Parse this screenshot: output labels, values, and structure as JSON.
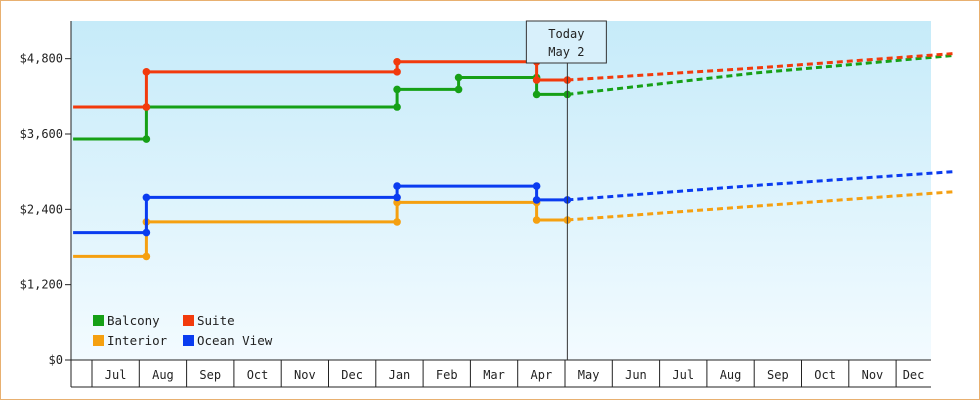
{
  "chart_data": {
    "type": "line",
    "title": "",
    "xlabel": "",
    "ylabel": "",
    "ylim": [
      0,
      5400
    ],
    "y_ticks": [
      0,
      1200,
      2400,
      3600,
      4800
    ],
    "y_tick_labels": [
      "$0",
      "$1,200",
      "$2,400",
      "$3,600",
      "$4,800"
    ],
    "x_months": [
      "Jul",
      "Aug",
      "Sep",
      "Oct",
      "Nov",
      "Dec",
      "Jan",
      "Feb",
      "Mar",
      "Apr",
      "May",
      "Jun",
      "Jul",
      "Aug",
      "Sep",
      "Oct",
      "Nov",
      "Dec"
    ],
    "x_range_months": [
      -0.4,
      18.2
    ],
    "today": {
      "label": "Today",
      "date": "May 2",
      "month_index": 10.05
    },
    "grid": false,
    "legend_position": "bottom-left",
    "series": [
      {
        "name": "Balcony",
        "color": "#16a016",
        "history": [
          [
            -0.4,
            3520
          ],
          [
            1.15,
            3520
          ],
          [
            1.15,
            4030
          ],
          [
            6.45,
            4030
          ],
          [
            6.45,
            4310
          ],
          [
            7.75,
            4310
          ],
          [
            7.75,
            4500
          ],
          [
            9.4,
            4500
          ],
          [
            9.4,
            4230
          ],
          [
            10.05,
            4230
          ]
        ],
        "projection": [
          [
            10.05,
            4230
          ],
          [
            14.0,
            4570
          ],
          [
            18.2,
            4850
          ]
        ]
      },
      {
        "name": "Suite",
        "color": "#f23a0c",
        "history": [
          [
            -0.4,
            4030
          ],
          [
            1.15,
            4030
          ],
          [
            1.15,
            4590
          ],
          [
            6.45,
            4590
          ],
          [
            6.45,
            4750
          ],
          [
            9.4,
            4750
          ],
          [
            9.4,
            4460
          ],
          [
            10.05,
            4460
          ]
        ],
        "projection": [
          [
            10.05,
            4460
          ],
          [
            14.0,
            4650
          ],
          [
            18.2,
            4880
          ]
        ]
      },
      {
        "name": "Interior",
        "color": "#f5a010",
        "history": [
          [
            -0.4,
            1650
          ],
          [
            1.15,
            1650
          ],
          [
            1.15,
            2200
          ],
          [
            6.45,
            2200
          ],
          [
            6.45,
            2510
          ],
          [
            9.4,
            2510
          ],
          [
            9.4,
            2230
          ],
          [
            10.05,
            2230
          ]
        ],
        "projection": [
          [
            10.05,
            2230
          ],
          [
            14.0,
            2450
          ],
          [
            18.2,
            2680
          ]
        ]
      },
      {
        "name": "Ocean View",
        "color": "#0a3cf0",
        "history": [
          [
            -0.4,
            2030
          ],
          [
            1.15,
            2030
          ],
          [
            1.15,
            2590
          ],
          [
            6.45,
            2590
          ],
          [
            6.45,
            2770
          ],
          [
            9.4,
            2770
          ],
          [
            9.4,
            2550
          ],
          [
            10.05,
            2550
          ]
        ],
        "projection": [
          [
            10.05,
            2550
          ],
          [
            14.0,
            2780
          ],
          [
            18.2,
            3000
          ]
        ]
      }
    ]
  }
}
